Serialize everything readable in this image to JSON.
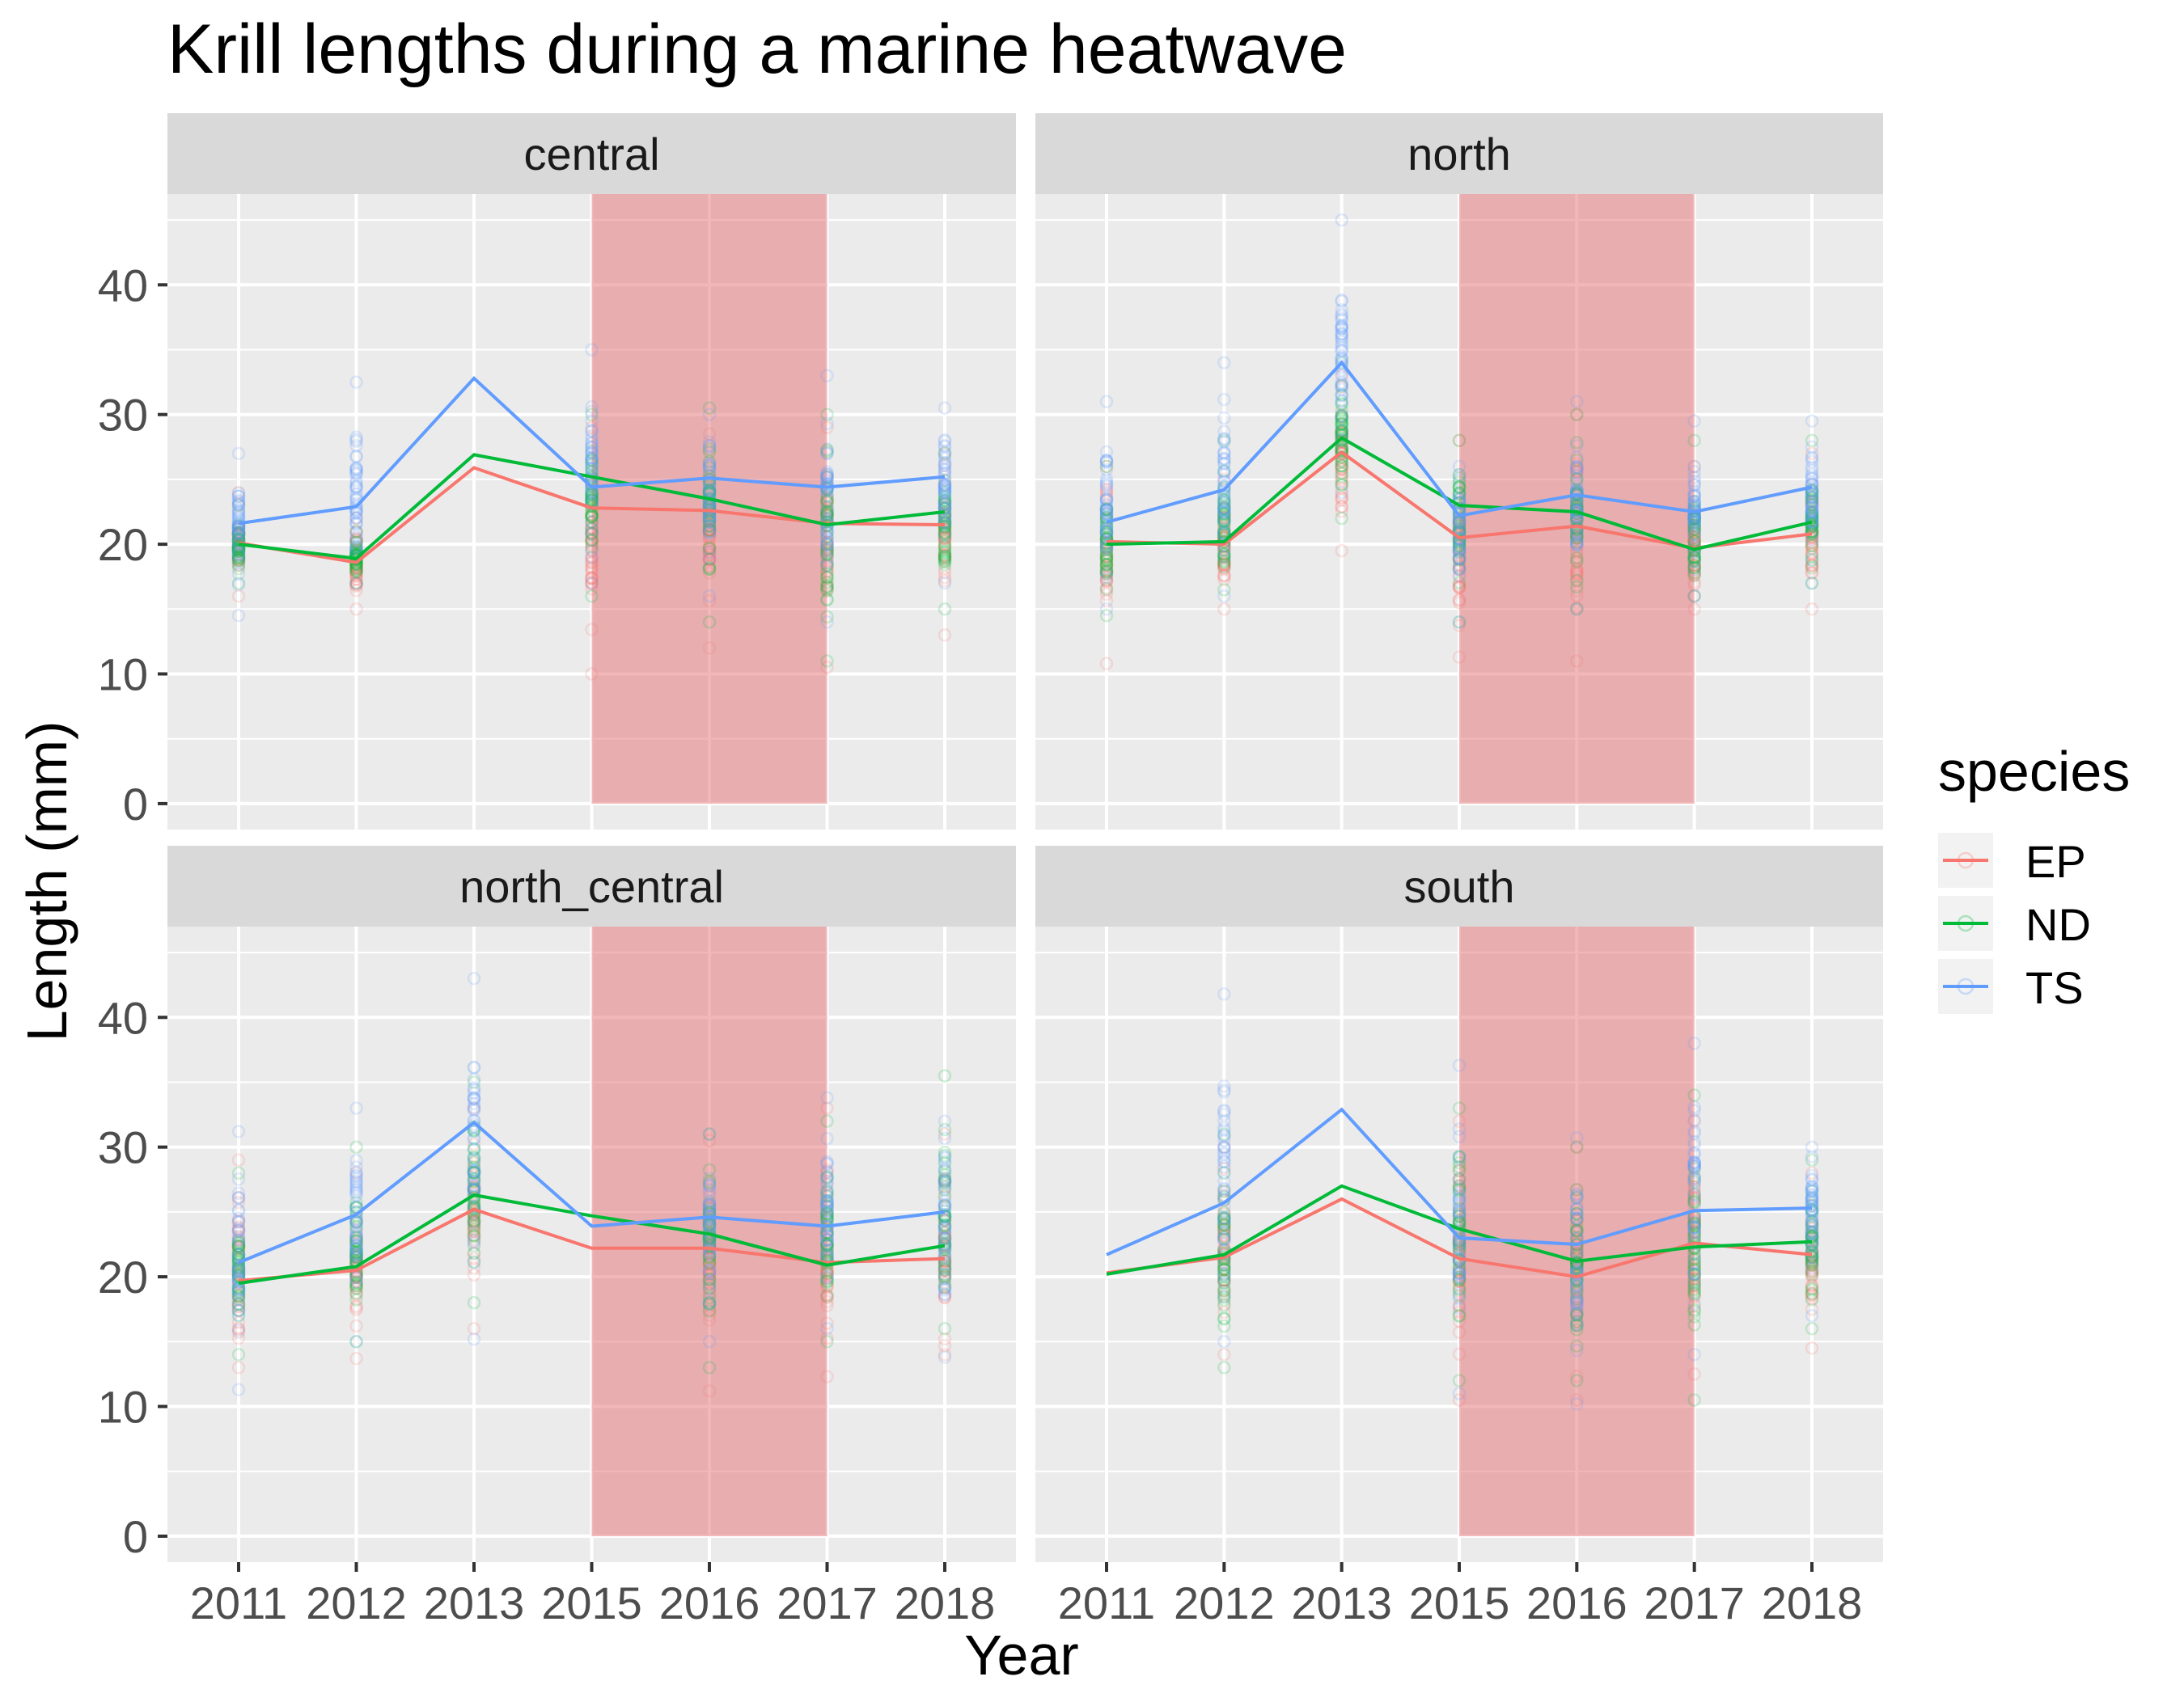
{
  "title": "Krill lengths during a marine heatwave",
  "chart_data": {
    "type": "line",
    "title": "Krill lengths during a marine heatwave",
    "xlabel": "Year",
    "ylabel": "Length (mm)",
    "ylim": [
      -2,
      47
    ],
    "y_ticks": [
      0,
      10,
      20,
      30,
      40
    ],
    "x_categories": [
      "2011",
      "2012",
      "2013",
      "2015",
      "2016",
      "2017",
      "2018"
    ],
    "grid": true,
    "legend": {
      "title": "species",
      "position": "right",
      "entries": [
        "EP",
        "ND",
        "TS"
      ]
    },
    "colors": {
      "EP": "#F8766D",
      "ND": "#00BA38",
      "TS": "#619CFF",
      "heatwave_band": "#E8A8AA",
      "panel_bg": "#EBEBEB",
      "strip_bg": "#D9D9D9"
    },
    "heatwave_band": {
      "x_from": "2015",
      "x_to": "2017",
      "y_from": 0,
      "y_to": 47
    },
    "layers": [
      "mean lines by species",
      "individual length points (semi-transparent)",
      "heatwave shaded band 2015-2017"
    ],
    "panels": [
      {
        "name": "central",
        "series": [
          {
            "name": "EP",
            "values": [
              20.1,
              18.6,
              25.9,
              22.8,
              22.6,
              21.6,
              21.5
            ]
          },
          {
            "name": "ND",
            "values": [
              20.0,
              18.9,
              26.9,
              25.2,
              23.5,
              21.5,
              22.5
            ]
          },
          {
            "name": "TS",
            "values": [
              21.6,
              22.9,
              32.8,
              24.4,
              25.1,
              24.4,
              25.2
            ]
          }
        ],
        "point_ranges": [
          {
            "year": "2011",
            "EP": [
              16.0,
              24.0
            ],
            "ND": [
              17.0,
              23.0
            ],
            "TS": [
              14.5,
              27.0
            ]
          },
          {
            "year": "2012",
            "EP": [
              15.0,
              22.0
            ],
            "ND": [
              17.0,
              21.0
            ],
            "TS": [
              17.0,
              32.5
            ]
          },
          {
            "year": "2013",
            "EP": null,
            "ND": null,
            "TS": null
          },
          {
            "year": "2015",
            "EP": [
              10.0,
              29.0
            ],
            "ND": [
              16.0,
              30.0
            ],
            "TS": [
              17.0,
              35.0
            ]
          },
          {
            "year": "2016",
            "EP": [
              12.0,
              28.5
            ],
            "ND": [
              14.0,
              30.5
            ],
            "TS": [
              16.0,
              30.0
            ]
          },
          {
            "year": "2017",
            "EP": [
              10.5,
              29.0
            ],
            "ND": [
              11.0,
              30.0
            ],
            "TS": [
              14.0,
              33.0
            ]
          },
          {
            "year": "2018",
            "EP": [
              13.0,
              27.0
            ],
            "ND": [
              15.0,
              27.0
            ],
            "TS": [
              17.0,
              30.5
            ]
          }
        ]
      },
      {
        "name": "north",
        "series": [
          {
            "name": "EP",
            "values": [
              20.2,
              20.0,
              27.1,
              20.5,
              21.4,
              19.7,
              20.8
            ]
          },
          {
            "name": "ND",
            "values": [
              20.0,
              20.2,
              28.2,
              23.0,
              22.5,
              19.6,
              21.7
            ]
          },
          {
            "name": "TS",
            "values": [
              21.7,
              24.2,
              34.0,
              22.2,
              23.8,
              22.5,
              24.4
            ]
          }
        ],
        "point_ranges": [
          {
            "year": "2011",
            "EP": [
              10.8,
              26.0
            ],
            "ND": [
              14.5,
              26.0
            ],
            "TS": [
              15.0,
              31.0
            ]
          },
          {
            "year": "2012",
            "EP": [
              15.0,
              25.0
            ],
            "ND": [
              16.5,
              28.0
            ],
            "TS": [
              16.0,
              34.0
            ]
          },
          {
            "year": "2013",
            "EP": [
              19.5,
              33.0
            ],
            "ND": [
              22.0,
              34.0
            ],
            "TS": [
              24.0,
              45.0
            ]
          },
          {
            "year": "2015",
            "EP": [
              11.3,
              28.0
            ],
            "ND": [
              14.0,
              28.0
            ],
            "TS": [
              14.0,
              26.0
            ]
          },
          {
            "year": "2016",
            "EP": [
              11.0,
              30.0
            ],
            "ND": [
              15.0,
              30.0
            ],
            "TS": [
              15.0,
              31.0
            ]
          },
          {
            "year": "2017",
            "EP": [
              15.0,
              26.0
            ],
            "ND": [
              16.0,
              28.0
            ],
            "TS": [
              16.0,
              29.5
            ]
          },
          {
            "year": "2018",
            "EP": [
              15.0,
              27.0
            ],
            "ND": [
              17.0,
              28.0
            ],
            "TS": [
              17.0,
              29.5
            ]
          }
        ]
      },
      {
        "name": "north_central",
        "series": [
          {
            "name": "EP",
            "values": [
              19.7,
              20.5,
              25.2,
              22.2,
              22.2,
              21.1,
              21.4
            ]
          },
          {
            "name": "ND",
            "values": [
              19.5,
              20.8,
              26.3,
              24.7,
              23.3,
              20.9,
              22.4
            ]
          },
          {
            "name": "TS",
            "values": [
              21.1,
              24.8,
              31.9,
              23.9,
              24.6,
              23.9,
              25.0
            ]
          }
        ],
        "point_ranges": [
          {
            "year": "2011",
            "EP": [
              13.0,
              29.0
            ],
            "ND": [
              14.0,
              28.0
            ],
            "TS": [
              11.3,
              31.2
            ]
          },
          {
            "year": "2012",
            "EP": [
              13.7,
              28.0
            ],
            "ND": [
              15.0,
              30.0
            ],
            "TS": [
              15.0,
              33.0
            ]
          },
          {
            "year": "2013",
            "EP": [
              16.0,
              33.0
            ],
            "ND": [
              18.0,
              35.0
            ],
            "TS": [
              15.2,
              43.0
            ]
          },
          {
            "year": "2015",
            "EP": null,
            "ND": null,
            "TS": null
          },
          {
            "year": "2016",
            "EP": [
              11.2,
              30.5
            ],
            "ND": [
              13.0,
              31.0
            ],
            "TS": [
              15.0,
              31.0
            ]
          },
          {
            "year": "2017",
            "EP": [
              12.3,
              33.0
            ],
            "ND": [
              15.0,
              32.0
            ],
            "TS": [
              16.0,
              33.8
            ]
          },
          {
            "year": "2018",
            "EP": [
              14.0,
              31.0
            ],
            "ND": [
              16.0,
              35.5
            ],
            "TS": [
              13.8,
              32.0
            ]
          }
        ]
      },
      {
        "name": "south",
        "series": [
          {
            "name": "EP",
            "values": [
              20.3,
              21.5,
              26.0,
              21.4,
              20.0,
              22.6,
              21.7
            ]
          },
          {
            "name": "ND",
            "values": [
              20.2,
              21.7,
              27.0,
              23.7,
              21.2,
              22.3,
              22.7
            ]
          },
          {
            "name": "TS",
            "values": [
              21.7,
              25.7,
              32.9,
              23.0,
              22.5,
              25.1,
              25.3
            ]
          }
        ],
        "point_ranges": [
          {
            "year": "2011",
            "EP": null,
            "ND": null,
            "TS": null
          },
          {
            "year": "2012",
            "EP": [
              14.0,
              30.0
            ],
            "ND": [
              13.0,
              31.0
            ],
            "TS": [
              15.0,
              41.8
            ]
          },
          {
            "year": "2013",
            "EP": null,
            "ND": null,
            "TS": null
          },
          {
            "year": "2015",
            "EP": [
              10.5,
              32.0
            ],
            "ND": [
              12.0,
              33.0
            ],
            "TS": [
              11.0,
              36.3
            ]
          },
          {
            "year": "2016",
            "EP": [
              10.5,
              30.0
            ],
            "ND": [
              12.0,
              30.0
            ],
            "TS": [
              10.2,
              30.7
            ]
          },
          {
            "year": "2017",
            "EP": [
              12.5,
              32.0
            ],
            "ND": [
              10.5,
              34.0
            ],
            "TS": [
              14.0,
              38.0
            ]
          },
          {
            "year": "2018",
            "EP": [
              14.5,
              28.0
            ],
            "ND": [
              16.0,
              29.0
            ],
            "TS": [
              17.0,
              30.0
            ]
          }
        ]
      }
    ]
  }
}
